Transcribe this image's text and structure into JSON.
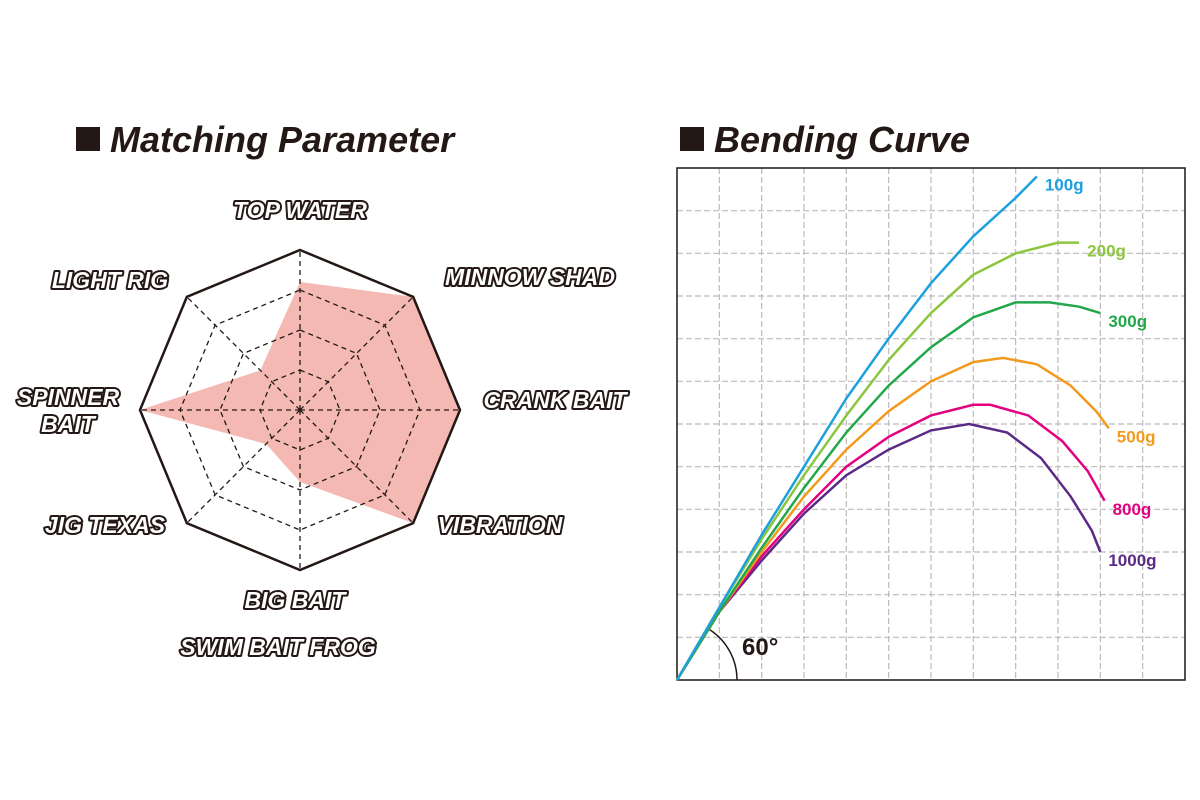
{
  "chart_data": [
    {
      "type": "radar",
      "title": "Matching Parameter",
      "categories": [
        [
          "TOP WATER"
        ],
        [
          "MINNOW SHAD"
        ],
        [
          "CRANK BAIT"
        ],
        [
          "VIBRATION"
        ],
        [
          "BIG BAIT",
          "SWIM BAIT  FROG"
        ],
        [
          "JIG  TEXAS"
        ],
        [
          "SPINNER",
          "BAIT"
        ],
        [
          "LIGHT RIG"
        ]
      ],
      "values": [
        3.2,
        4,
        4,
        4,
        1.8,
        1.2,
        4,
        1.4
      ],
      "color": "#f4b9b3",
      "rlim": [
        0,
        4
      ],
      "rticks": [
        1,
        2,
        3,
        4
      ]
    },
    {
      "type": "line",
      "title": "Bending Curve",
      "annotation": "60°",
      "xlim": [
        0,
        12
      ],
      "ylim": [
        0,
        12
      ],
      "xticks": [
        0,
        1,
        2,
        3,
        4,
        5,
        6,
        7,
        8,
        9,
        10,
        11,
        12
      ],
      "yticks": [
        0,
        1,
        2,
        3,
        4,
        5,
        6,
        7,
        8,
        9,
        10,
        11,
        12
      ],
      "grid": true,
      "series": [
        {
          "name": "100g",
          "color": "#1ea0dc",
          "x": [
            0,
            1,
            2,
            3,
            4,
            5,
            6,
            7,
            8,
            8.5
          ],
          "values": [
            0,
            1.7,
            3.4,
            5,
            6.6,
            8,
            9.3,
            10.4,
            11.3,
            11.8
          ]
        },
        {
          "name": "200g",
          "color": "#8cc63f",
          "x": [
            0,
            1,
            2,
            3,
            4,
            5,
            6,
            7,
            8,
            9,
            9.5
          ],
          "values": [
            0,
            1.7,
            3.3,
            4.8,
            6.2,
            7.5,
            8.6,
            9.5,
            10,
            10.25,
            10.25
          ]
        },
        {
          "name": "300g",
          "color": "#22a84a",
          "x": [
            0,
            1,
            2,
            3,
            4,
            5,
            6,
            7,
            8,
            8.8,
            9.5,
            10
          ],
          "values": [
            0,
            1.6,
            3.1,
            4.5,
            5.8,
            6.9,
            7.8,
            8.5,
            8.85,
            8.85,
            8.75,
            8.6
          ]
        },
        {
          "name": "500g",
          "color": "#f39a1e",
          "x": [
            0,
            1,
            2,
            3,
            4,
            5,
            6,
            7,
            7.7,
            8.5,
            9.3,
            9.9,
            10.2
          ],
          "values": [
            0,
            1.6,
            3,
            4.3,
            5.4,
            6.3,
            7,
            7.45,
            7.55,
            7.4,
            6.9,
            6.3,
            5.9
          ]
        },
        {
          "name": "800g",
          "color": "#e4007f",
          "x": [
            0,
            1,
            2,
            3,
            4,
            5,
            6,
            7,
            7.4,
            8.3,
            9.1,
            9.7,
            10.1
          ],
          "values": [
            0,
            1.6,
            2.9,
            4,
            5,
            5.7,
            6.2,
            6.45,
            6.45,
            6.2,
            5.6,
            4.9,
            4.2
          ]
        },
        {
          "name": "1000g",
          "color": "#5b2a86",
          "x": [
            0,
            1,
            2,
            3,
            4,
            5,
            6,
            6.9,
            7.8,
            8.6,
            9.3,
            9.8,
            10
          ],
          "values": [
            0,
            1.6,
            2.8,
            3.9,
            4.8,
            5.4,
            5.85,
            6,
            5.8,
            5.2,
            4.3,
            3.5,
            3
          ]
        }
      ]
    }
  ]
}
